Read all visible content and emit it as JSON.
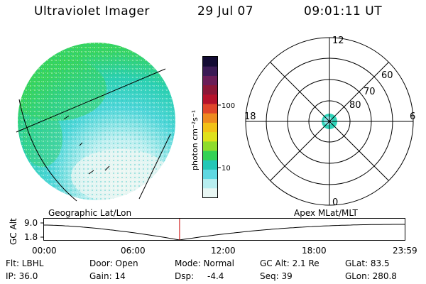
{
  "header": {
    "title": "Ultraviolet Imager",
    "date": "29 Jul 07",
    "time": "09:01:11 UT"
  },
  "colorbar": {
    "label": "photon cm⁻²s⁻¹",
    "ticks": [
      "100",
      "10"
    ],
    "colors": [
      "#120b33",
      "#3a1a55",
      "#6a1d57",
      "#8b1737",
      "#b5122b",
      "#e0462a",
      "#ee8a1f",
      "#f2c116",
      "#dfe11b",
      "#8fdc2c",
      "#33d255",
      "#22c7b6",
      "#5fd8e2",
      "#b7eef0",
      "#e9f7f4"
    ]
  },
  "polar": {
    "hour_labels": [
      "12",
      "18",
      "6",
      "0"
    ],
    "lat_labels": [
      "60",
      "70",
      "80"
    ]
  },
  "timeline": {
    "left_label": "Geographic Lat/Lon",
    "right_label": "Apex  MLat/MLT",
    "axis_title": "GC Alt",
    "y_ticks": [
      "9.0",
      "1.8"
    ],
    "x_ticks": [
      "00:00",
      "06:00",
      "12:00",
      "18:00",
      "23:59"
    ],
    "current_marker_hours": 9.02
  },
  "footer": {
    "flt": "Flt: LBHL",
    "ip": "IP: 36.0",
    "door": "Door: Open",
    "gain": "Gain: 14",
    "mode": "Mode: Normal",
    "dsp_label": "Dsp:",
    "dsp_value": "-4.4",
    "gcalt": "GC Alt: 2.1 Re",
    "seq": "Seq: 39",
    "glat": "GLat:  83.5",
    "glon": "GLon: 280.8"
  }
}
